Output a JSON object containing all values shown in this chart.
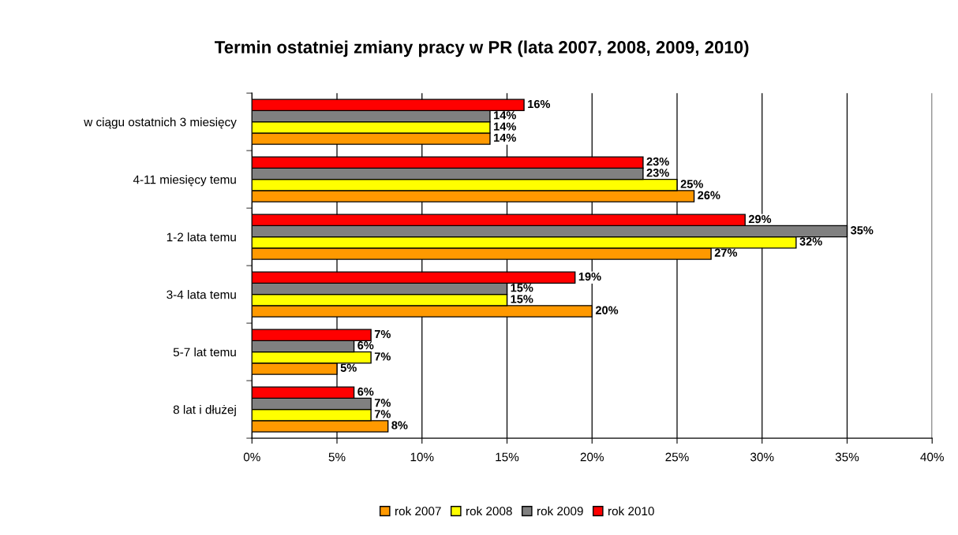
{
  "chart_data": {
    "type": "bar",
    "orientation": "horizontal",
    "title": "Termin ostatniej zmiany pracy w PR (lata 2007, 2008, 2009, 2010)",
    "categories": [
      "w ciągu ostatnich 3 miesięcy",
      "4-11 miesięcy temu",
      "1-2 lata temu",
      "3-4 lata temu",
      "5-7 lat temu",
      "8 lat i dłużej"
    ],
    "series": [
      {
        "name": "rok 2007",
        "color": "#ff9900",
        "values": [
          14,
          26,
          27,
          20,
          5,
          8
        ],
        "value_labels": [
          "14%",
          "26%",
          "27%",
          "20%",
          "5%",
          "8%"
        ]
      },
      {
        "name": "rok 2008",
        "color": "#ffff00",
        "values": [
          14,
          25,
          32,
          15,
          7,
          7
        ],
        "value_labels": [
          "14%",
          "25%",
          "32%",
          "15%",
          "7%",
          "7%"
        ]
      },
      {
        "name": "rok 2009",
        "color": "#808080",
        "values": [
          14,
          23,
          35,
          15,
          6,
          7
        ],
        "value_labels": [
          "14%",
          "23%",
          "35%",
          "15%",
          "6%",
          "7%"
        ]
      },
      {
        "name": "rok 2010",
        "color": "#ff0000",
        "values": [
          16,
          23,
          29,
          19,
          7,
          6
        ],
        "value_labels": [
          "16%",
          "23%",
          "29%",
          "19%",
          "7%",
          "6%"
        ]
      }
    ],
    "xlim": [
      0,
      40
    ],
    "xticks": [
      {
        "value": 0,
        "label": "0%"
      },
      {
        "value": 5,
        "label": "5%"
      },
      {
        "value": 10,
        "label": "10%"
      },
      {
        "value": 15,
        "label": "15%"
      },
      {
        "value": 20,
        "label": "20%"
      },
      {
        "value": 25,
        "label": "25%"
      },
      {
        "value": 30,
        "label": "30%"
      },
      {
        "value": 35,
        "label": "35%"
      },
      {
        "value": 40,
        "label": "40%"
      }
    ],
    "grid": "x",
    "legend": "bottom"
  }
}
